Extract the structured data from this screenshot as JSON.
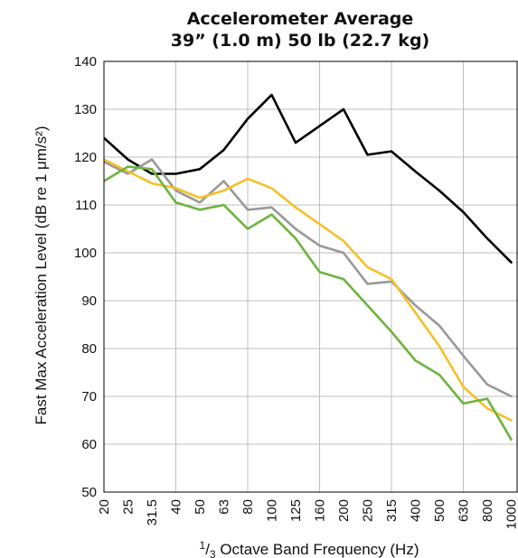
{
  "chart_data": {
    "type": "line",
    "title": "Accelerometer Average",
    "subtitle": "39” (1.0 m) 50 lb (22.7 kg)",
    "xlabel": "1/3 Octave Band Frequency (Hz)",
    "ylabel": "Fast Max Acceleration Level (dB re 1 μm/s²)",
    "ylim": [
      50,
      140
    ],
    "yticks": [
      50,
      60,
      70,
      80,
      90,
      100,
      110,
      120,
      130,
      140
    ],
    "categories": [
      "20",
      "25",
      "31.5",
      "40",
      "50",
      "63",
      "80",
      "100",
      "125",
      "160",
      "200",
      "250",
      "315",
      "400",
      "500",
      "630",
      "800",
      "1000"
    ],
    "grid": true,
    "legend": "none",
    "series": [
      {
        "color": "#000000",
        "values": [
          124,
          119.5,
          116.5,
          116.5,
          117.5,
          121.5,
          128,
          133,
          123,
          126.5,
          130,
          120.5,
          121.2,
          117,
          113,
          108.5,
          103,
          98
        ]
      },
      {
        "color": "#999999",
        "values": [
          119,
          116.5,
          119.5,
          113,
          110.5,
          115,
          109,
          109.5,
          105,
          101.5,
          100,
          93.5,
          94,
          89,
          84.8,
          78.5,
          72.5,
          70
        ]
      },
      {
        "color": "#f5c02a",
        "values": [
          119.5,
          117,
          114.5,
          113.5,
          111.5,
          113,
          115.5,
          113.5,
          109.5,
          106,
          102.5,
          97,
          94.5,
          87.5,
          80.5,
          72,
          67.5,
          65
        ]
      },
      {
        "color": "#6db33f",
        "values": [
          115,
          118,
          117.5,
          110.5,
          109,
          110,
          105,
          108,
          103,
          96,
          94.5,
          89,
          83.5,
          77.5,
          74.5,
          68.5,
          69.5,
          61
        ]
      }
    ]
  }
}
